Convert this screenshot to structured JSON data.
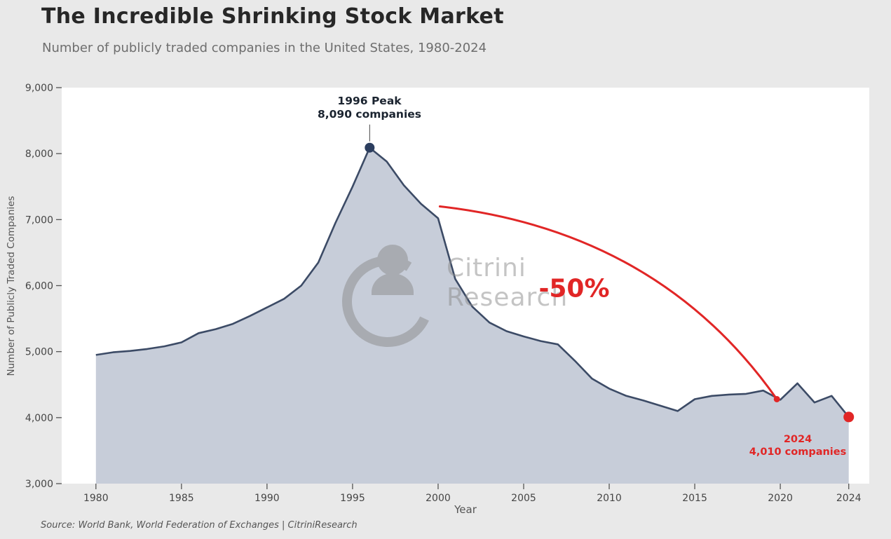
{
  "header": {
    "title": "The Incredible Shrinking Stock Market",
    "subtitle": "Number of publicly traded companies in the United States, 1980-2024"
  },
  "chart_data": {
    "type": "area",
    "series_name": "Publicly traded companies in the United States",
    "x": [
      1980,
      1981,
      1982,
      1983,
      1984,
      1985,
      1986,
      1987,
      1988,
      1989,
      1990,
      1991,
      1992,
      1993,
      1994,
      1995,
      1996,
      1997,
      1998,
      1999,
      2000,
      2001,
      2002,
      2003,
      2004,
      2005,
      2006,
      2007,
      2008,
      2009,
      2010,
      2011,
      2012,
      2013,
      2014,
      2015,
      2016,
      2017,
      2018,
      2019,
      2020,
      2021,
      2022,
      2023,
      2024
    ],
    "values": [
      4950,
      4990,
      5010,
      5040,
      5080,
      5140,
      5280,
      5340,
      5420,
      5540,
      5670,
      5800,
      6000,
      6350,
      6950,
      7500,
      8090,
      7880,
      7520,
      7240,
      7020,
      6100,
      5680,
      5440,
      5310,
      5230,
      5160,
      5110,
      4860,
      4590,
      4440,
      4330,
      4260,
      4180,
      4100,
      4280,
      4330,
      4350,
      4360,
      4410,
      4270,
      4520,
      4230,
      4330,
      4010
    ],
    "xlabel": "Year",
    "ylabel": "Number of Publicly Traded Companies",
    "xlim": [
      1978,
      2025.2
    ],
    "ylim": [
      3000,
      9000
    ],
    "ytick_values": [
      3000,
      4000,
      5000,
      6000,
      7000,
      8000,
      9000
    ],
    "ytick_labels": [
      "3,000",
      "4,000",
      "5,000",
      "6,000",
      "7,000",
      "8,000",
      "9,000"
    ],
    "xtick_values": [
      1980,
      1985,
      1990,
      1995,
      2000,
      2005,
      2010,
      2015,
      2020,
      2024
    ],
    "xtick_labels": [
      "1980",
      "1985",
      "1990",
      "1995",
      "2000",
      "2005",
      "2010",
      "2015",
      "2020",
      "2024"
    ],
    "grid": false,
    "legend": "none"
  },
  "annotations": {
    "peak": {
      "line1": "1996 Peak",
      "line2": "8,090 companies",
      "year": 1996,
      "value": 8090
    },
    "decline_label": "-50%",
    "end": {
      "line1": "2024",
      "line2": "4,010 companies",
      "year": 2024,
      "value": 4010
    },
    "arrow": {
      "from_year": 2000.1,
      "from_value": 7200,
      "to_year": 2019.8,
      "to_value": 4280
    }
  },
  "watermark": {
    "line1": "Citrini",
    "line2": "Research"
  },
  "footer": {
    "source": "Source: World Bank, World Federation of Exchanges | CitriniResearch"
  },
  "colors": {
    "background": "#e9e9e9",
    "plot_background": "#ffffff",
    "line": "#3c4b66",
    "fill": "#c7cdd9",
    "peak_dot": "#2c3e5f",
    "accent_red": "#e12626",
    "text_dark": "#272727",
    "text_gray": "#6e6e6e",
    "watermark_gray": "#8a8a8a"
  }
}
